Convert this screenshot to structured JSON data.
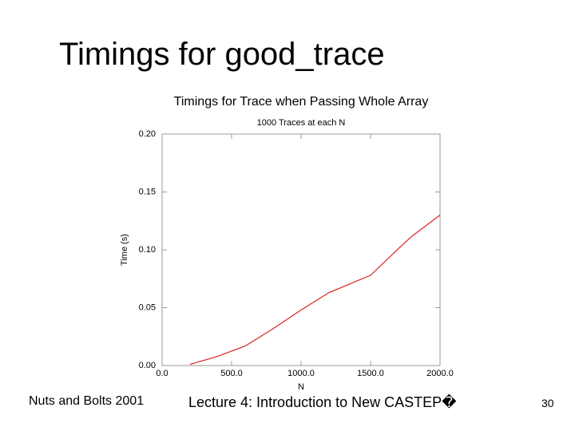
{
  "slide_title": "Timings for good_trace",
  "footer_left": "Nuts and Bolts 2001",
  "footer_center": "Lecture 4: Introduction to New CASTEP�",
  "page_number": "30",
  "chart_data": {
    "type": "line",
    "title": "Timings for Trace when Passing Whole Array",
    "subtitle": "1000 Traces at each N",
    "x_label": "N",
    "y_label": "Time (s)",
    "x": [
      200,
      400,
      600,
      800,
      1000,
      1200,
      1500,
      1700,
      1800,
      2000
    ],
    "series": [
      {
        "name": "good_trace",
        "color": "#dd2222",
        "values": [
          0.001,
          0.008,
          0.017,
          0.032,
          0.048,
          0.063,
          0.078,
          0.101,
          0.112,
          0.13
        ]
      }
    ],
    "xlim": [
      0,
      2000
    ],
    "ylim": [
      0,
      0.2
    ],
    "xticks": [
      {
        "value": 0,
        "label": "0.0"
      },
      {
        "value": 500,
        "label": "500.0"
      },
      {
        "value": 1000,
        "label": "1000.0"
      },
      {
        "value": 1500,
        "label": "1500.0"
      },
      {
        "value": 2000,
        "label": "2000.0"
      }
    ],
    "yticks": [
      {
        "value": 0,
        "label": "0.00"
      },
      {
        "value": 0.05,
        "label": "0.05"
      },
      {
        "value": 0.1,
        "label": "0.10"
      },
      {
        "value": 0.15,
        "label": "0.15"
      },
      {
        "value": 0.2,
        "label": "0.20"
      }
    ],
    "grid": false
  }
}
